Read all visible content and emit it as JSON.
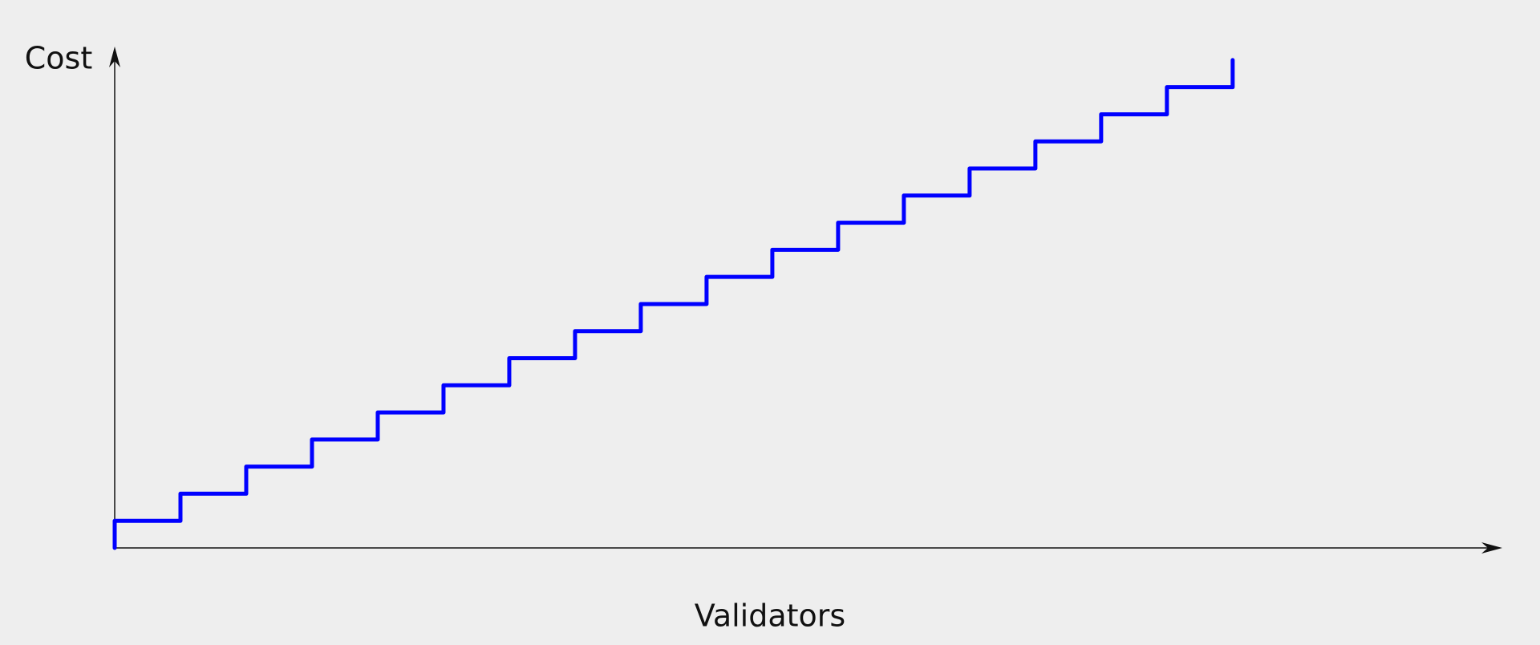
{
  "chart_data": {
    "type": "line",
    "x_label": "Validators",
    "y_label": "Cost",
    "x": [
      0,
      0,
      1,
      1,
      2,
      2,
      3,
      3,
      4,
      4,
      5,
      5,
      6,
      6,
      7,
      7,
      8,
      8,
      9,
      9,
      10,
      10,
      11,
      11,
      12,
      12,
      13,
      13,
      14,
      14,
      15,
      15,
      16,
      16,
      17,
      17
    ],
    "series": [
      {
        "color": "#0000ff",
        "values": [
          0,
          1,
          1,
          2,
          2,
          3,
          3,
          4,
          4,
          5,
          5,
          6,
          6,
          7,
          7,
          8,
          8,
          9,
          9,
          10,
          10,
          11,
          11,
          12,
          12,
          13,
          13,
          14,
          14,
          15,
          15,
          16,
          16,
          17,
          17,
          18
        ]
      }
    ],
    "xlim": [
      0,
      21.1
    ],
    "ylim": [
      0,
      18.5
    ]
  }
}
